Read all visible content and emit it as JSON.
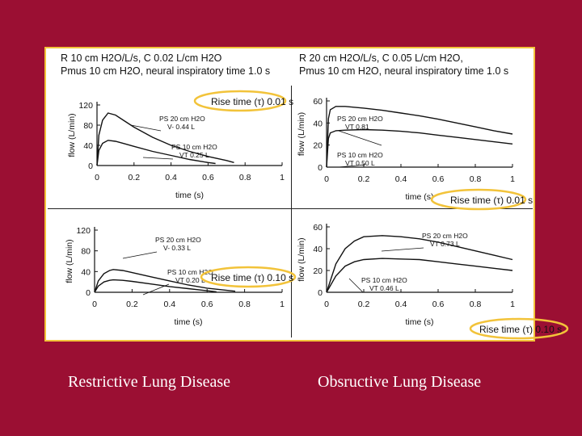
{
  "header": {
    "left": {
      "line1": "R 10 cm H2O/L/s, C 0.02 L/cm H2O",
      "line2": "Pmus 10 cm H2O, neural inspiratory time 1.0 s"
    },
    "right": {
      "line1": "R 20 cm H2O/L/s, C 0.05 L/cm H2O,",
      "line2": "Pmus 10 cm H2O, neural inspiratory time 1.0 s"
    }
  },
  "captions": {
    "left": "Restrictive Lung Disease",
    "right": "Obsructive Lung Disease"
  },
  "highlight_color": "#f2c33a",
  "chart_data": [
    {
      "type": "line",
      "id": "restrictive-fast",
      "xlabel": "time (s)",
      "ylabel": "flow (L/min)",
      "xlim": [
        0,
        1
      ],
      "ylim": [
        0,
        120
      ],
      "xticks": [
        "0",
        "0.2",
        "0.4",
        "0.6",
        "0.8",
        "1"
      ],
      "yticks": [
        "0",
        "40",
        "80",
        "120"
      ],
      "rise_time": "Rise time (τ) 0.01 s",
      "series": [
        {
          "name": "PS 20 cm H2O",
          "vt": "V- 0.44 L",
          "x": [
            0,
            0.01,
            0.03,
            0.06,
            0.1,
            0.15,
            0.2,
            0.3,
            0.4,
            0.5,
            0.6,
            0.7,
            0.74
          ],
          "y": [
            0,
            60,
            90,
            104,
            100,
            88,
            76,
            56,
            40,
            28,
            18,
            10,
            6
          ]
        },
        {
          "name": "PS 10 cm H2O",
          "vt": "VT 0.25 L",
          "x": [
            0,
            0.01,
            0.03,
            0.06,
            0.1,
            0.15,
            0.2,
            0.3,
            0.4,
            0.5,
            0.6,
            0.64
          ],
          "y": [
            0,
            30,
            44,
            50,
            48,
            43,
            38,
            28,
            20,
            12,
            6,
            4
          ]
        }
      ]
    },
    {
      "type": "line",
      "id": "obstructive-fast",
      "xlabel": "time (s)",
      "ylabel": "flow (L/min)",
      "xlim": [
        0,
        1
      ],
      "ylim": [
        0,
        60
      ],
      "xticks": [
        "0",
        "0.2",
        "0.4",
        "0.6",
        "0.8",
        "1"
      ],
      "yticks": [
        "0",
        "20",
        "40",
        "60"
      ],
      "rise_time": "Rise time (τ) 0.01 s",
      "series": [
        {
          "name": "PS 20 cm H2O",
          "vt": "VT 0.81",
          "x": [
            0,
            0.01,
            0.02,
            0.05,
            0.1,
            0.2,
            0.3,
            0.4,
            0.5,
            0.6,
            0.7,
            0.8,
            0.9,
            1.0
          ],
          "y": [
            0,
            44,
            52,
            55,
            55,
            53.5,
            51.5,
            49,
            46.5,
            43.5,
            40,
            36.5,
            33,
            30
          ]
        },
        {
          "name": "PS 10 cm H2O",
          "vt": "VT 0.50 L",
          "x": [
            0,
            0.01,
            0.02,
            0.05,
            0.1,
            0.2,
            0.3,
            0.4,
            0.5,
            0.6,
            0.7,
            0.8,
            0.9,
            1.0
          ],
          "y": [
            0,
            26,
            31,
            33,
            33.5,
            34,
            33.5,
            32.5,
            31,
            29,
            27,
            25,
            23,
            21
          ]
        }
      ]
    },
    {
      "type": "line",
      "id": "restrictive-slow",
      "xlabel": "time (s)",
      "ylabel": "flow (L/min)",
      "xlim": [
        0,
        1
      ],
      "ylim": [
        0,
        120
      ],
      "xticks": [
        "0",
        "0.2",
        "0.4",
        "0.6",
        "0.8",
        "1"
      ],
      "yticks": [
        "0",
        "40",
        "80",
        "120"
      ],
      "rise_time": "Rise time (τ) 0.10 s",
      "series": [
        {
          "name": "PS 20 cm H2O",
          "vt": "V- 0.33 L",
          "x": [
            0,
            0.02,
            0.05,
            0.08,
            0.1,
            0.15,
            0.2,
            0.3,
            0.4,
            0.5,
            0.6,
            0.7,
            0.75
          ],
          "y": [
            0,
            22,
            36,
            42,
            44,
            42,
            38,
            30,
            22,
            14,
            8,
            4,
            2
          ]
        },
        {
          "name": "PS 10 cm H2O",
          "vt": "VT 0.20 L",
          "x": [
            0,
            0.02,
            0.05,
            0.08,
            0.1,
            0.15,
            0.2,
            0.3,
            0.4,
            0.5,
            0.6,
            0.65
          ],
          "y": [
            0,
            12,
            20,
            23,
            24,
            23,
            21,
            16,
            11,
            7,
            3,
            1
          ]
        }
      ]
    },
    {
      "type": "line",
      "id": "obstructive-slow",
      "xlabel": "time (s)",
      "ylabel": "flow (L/min)",
      "xlim": [
        0,
        1
      ],
      "ylim": [
        0,
        60
      ],
      "xticks": [
        "0",
        "0.2",
        "0.4",
        "0.6",
        "0.8",
        "1"
      ],
      "yticks": [
        "0",
        "20",
        "40",
        "60"
      ],
      "rise_time": "Rise time (τ) 0.10 s",
      "series": [
        {
          "name": "PS 20 cm H2O",
          "vt": "VT 0.73 L",
          "x": [
            0,
            0.05,
            0.1,
            0.15,
            0.2,
            0.3,
            0.4,
            0.5,
            0.6,
            0.7,
            0.8,
            0.9,
            1.0
          ],
          "y": [
            0,
            26,
            40,
            47,
            51,
            52,
            51,
            49,
            46,
            42,
            38,
            34,
            30
          ]
        },
        {
          "name": "PS 10 cm H2O",
          "vt": "VT 0.46 L",
          "x": [
            0,
            0.05,
            0.1,
            0.15,
            0.2,
            0.3,
            0.4,
            0.5,
            0.6,
            0.7,
            0.8,
            0.9,
            1.0
          ],
          "y": [
            0,
            15,
            24,
            28,
            30,
            31,
            30.5,
            30,
            28,
            26,
            24,
            22,
            20
          ]
        }
      ]
    }
  ]
}
